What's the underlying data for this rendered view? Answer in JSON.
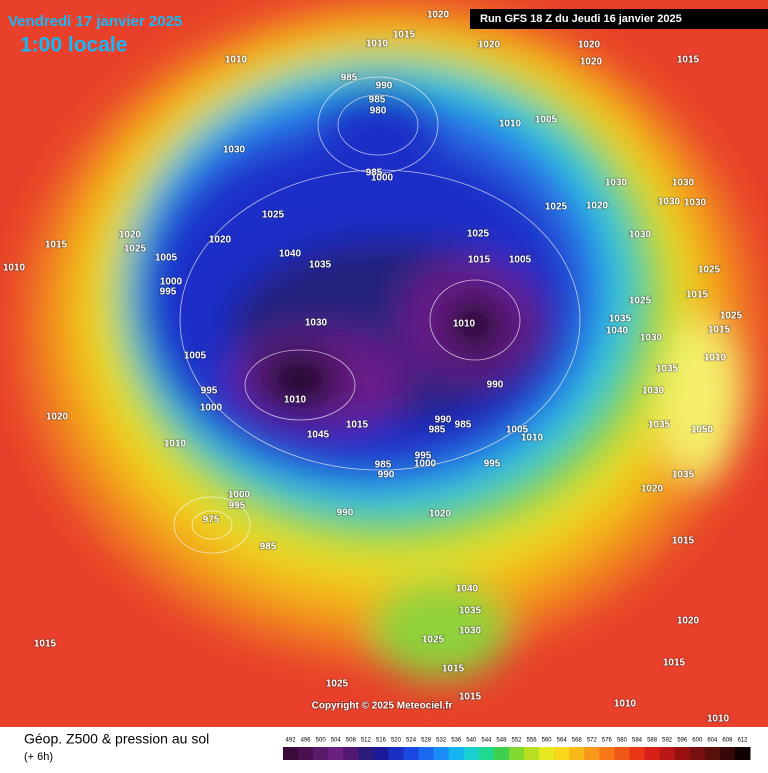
{
  "header": {
    "date": "Vendredi 17 janvier 2025",
    "time": "1:00 locale",
    "run": "Run GFS 18 Z du Jeudi 16 janvier 2025"
  },
  "map": {
    "copyright": "Copyright © 2025 Meteociel.fr",
    "pressure_labels": [
      1020,
      1015,
      1010,
      1020,
      1020,
      1020,
      1015,
      1010,
      985,
      990,
      985,
      980,
      1010,
      1005,
      1030,
      985,
      1000,
      1030,
      1030,
      1025,
      1020,
      1030,
      1030,
      1025,
      1020,
      1020,
      1025,
      1015,
      1025,
      1030,
      1040,
      1005,
      1015,
      1005,
      1035,
      1010,
      1025,
      1000,
      995,
      1015,
      1025,
      1030,
      1010,
      1025,
      1035,
      1040,
      1015,
      1030,
      1005,
      1010,
      1035,
      995,
      990,
      1030,
      1010,
      1000,
      1020,
      1035,
      990,
      985,
      985,
      1045,
      1015,
      1050,
      1005,
      1010,
      1010,
      995,
      1000,
      985,
      990,
      995,
      1035,
      1020,
      1000,
      995,
      990,
      975,
      1020,
      985,
      1015,
      1040,
      1035,
      1030,
      1025,
      1020,
      1015,
      1015,
      1015,
      1025,
      1015,
      1010,
      1010
    ]
  },
  "legend": {
    "title": "Géop. Z500 & pression au sol",
    "subtitle": "(+ 6h)",
    "scale": [
      492,
      496,
      500,
      504,
      508,
      512,
      516,
      520,
      524,
      528,
      532,
      536,
      540,
      544,
      548,
      552,
      556,
      560,
      564,
      568,
      572,
      576,
      580,
      584,
      588,
      592,
      596,
      600,
      604,
      608,
      612
    ]
  }
}
